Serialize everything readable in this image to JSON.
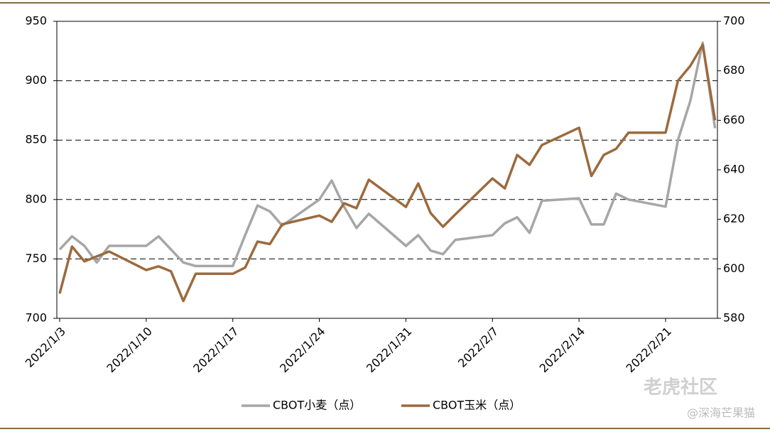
{
  "chart_data": {
    "type": "line",
    "x": [
      "2022/1/3",
      "2022/1/4",
      "2022/1/5",
      "2022/1/6",
      "2022/1/7",
      "2022/1/10",
      "2022/1/11",
      "2022/1/12",
      "2022/1/13",
      "2022/1/14",
      "2022/1/17",
      "2022/1/18",
      "2022/1/19",
      "2022/1/20",
      "2022/1/21",
      "2022/1/24",
      "2022/1/25",
      "2022/1/26",
      "2022/1/27",
      "2022/1/28",
      "2022/1/31",
      "2022/2/1",
      "2022/2/2",
      "2022/2/3",
      "2022/2/4",
      "2022/2/7",
      "2022/2/8",
      "2022/2/9",
      "2022/2/10",
      "2022/2/11",
      "2022/2/14",
      "2022/2/15",
      "2022/2/16",
      "2022/2/17",
      "2022/2/18",
      "2022/2/21",
      "2022/2/22",
      "2022/2/23",
      "2022/2/24",
      "2022/2/25"
    ],
    "series": [
      {
        "name": "CBOT小麦（点）",
        "color": "#a6a6a6",
        "values": [
          758,
          769,
          761,
          747,
          761,
          761,
          769,
          758,
          747,
          744,
          744,
          770,
          795,
          790,
          778,
          800,
          816,
          794,
          776,
          788,
          761,
          770,
          757,
          754,
          766,
          770,
          780,
          785,
          772,
          799,
          801,
          779,
          779,
          805,
          800,
          794,
          850,
          883,
          932,
          860
        ]
      },
      {
        "name": "CBOT玉米（点）",
        "color": "#9c6a3e",
        "axis": "y2",
        "values": [
          590,
          609,
          603,
          605,
          607,
          599.5,
          601,
          599,
          587,
          598,
          598,
          600.5,
          611,
          610,
          618,
          621.5,
          619,
          626.5,
          624.5,
          636,
          625,
          634.5,
          622.5,
          617,
          622,
          636.5,
          632.5,
          646,
          642,
          650,
          657,
          637.5,
          646,
          648.5,
          655,
          655,
          676,
          682,
          690.5,
          660
        ]
      }
    ],
    "xticks": [
      "2022/1/3",
      "2022/1/10",
      "2022/1/17",
      "2022/1/24",
      "2022/1/31",
      "2022/2/7",
      "2022/2/14",
      "2022/2/21"
    ],
    "ylim": [
      700,
      950
    ],
    "yticks": [
      700,
      750,
      800,
      850,
      900,
      950
    ],
    "y2lim": [
      580,
      700
    ],
    "y2ticks": [
      580,
      600,
      620,
      640,
      660,
      680,
      700
    ],
    "grid": true,
    "watermark": [
      "老虎社区",
      "@深海芒果猫"
    ]
  }
}
